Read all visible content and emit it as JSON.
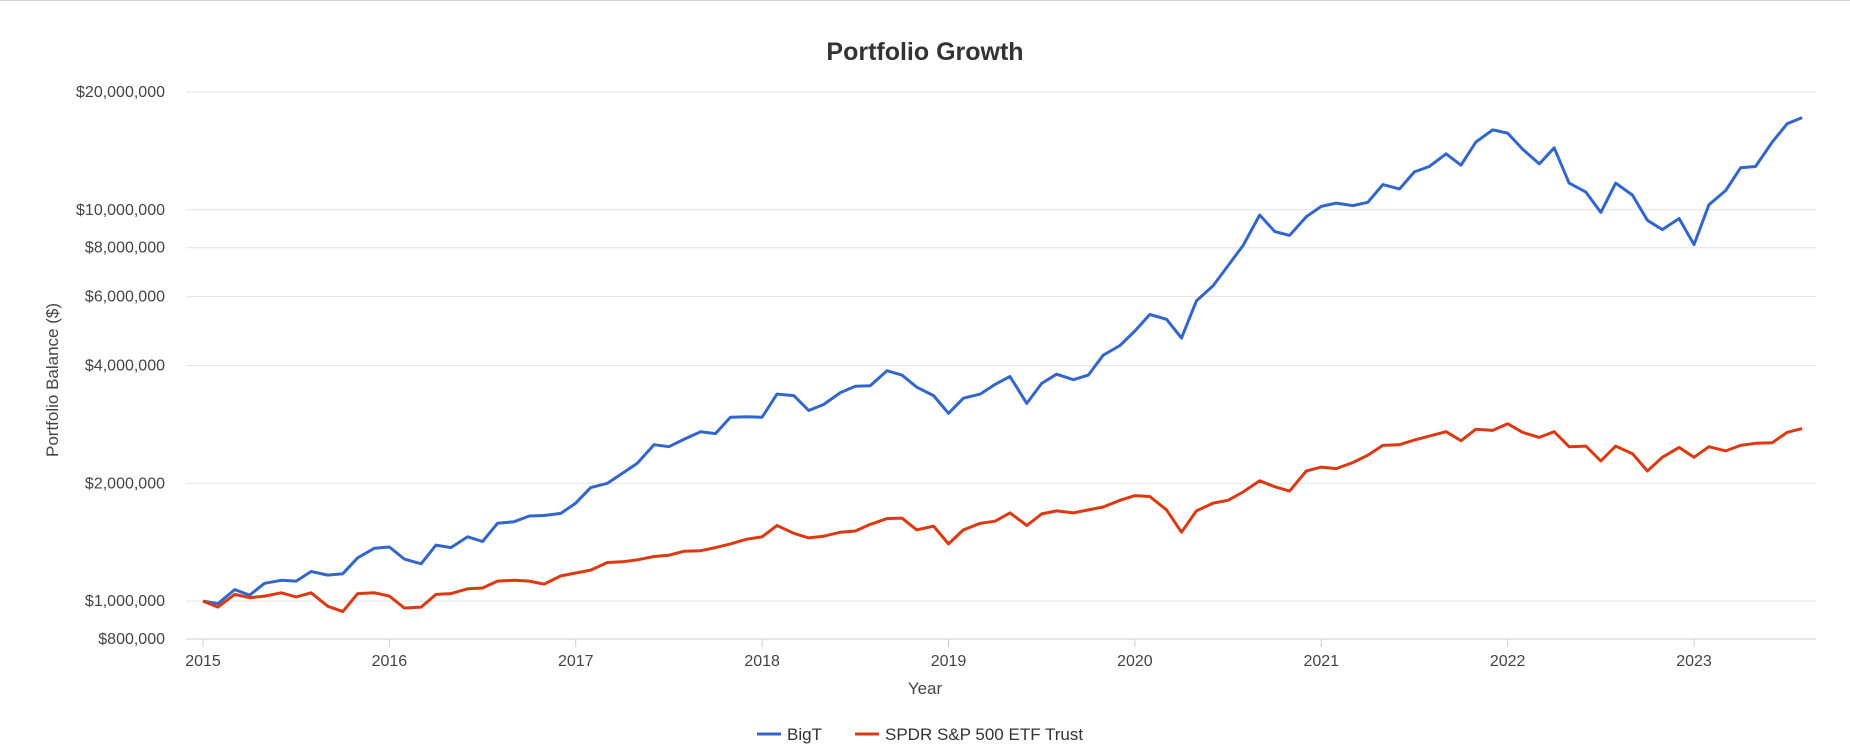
{
  "chart_data": {
    "type": "line",
    "title": "Portfolio Growth",
    "xlabel": "Year",
    "ylabel": "Portfolio Balance ($)",
    "y_scale": "log",
    "ylim": [
      800000,
      20000000
    ],
    "y_ticks": [
      800000,
      1000000,
      2000000,
      4000000,
      6000000,
      8000000,
      10000000,
      20000000
    ],
    "y_tick_labels": [
      "$800,000",
      "$1,000,000",
      "$2,000,000",
      "$4,000,000",
      "$6,000,000",
      "$8,000,000",
      "$10,000,000",
      "$20,000,000"
    ],
    "x_ticks": [
      2015,
      2016,
      2017,
      2018,
      2019,
      2020,
      2021,
      2022,
      2023
    ],
    "x_tick_labels": [
      "2015",
      "2016",
      "2017",
      "2018",
      "2019",
      "2020",
      "2021",
      "2022",
      "2023"
    ],
    "grid": true,
    "legend_position": "bottom-center",
    "x": [
      2015.0,
      2015.08,
      2015.17,
      2015.25,
      2015.33,
      2015.42,
      2015.5,
      2015.58,
      2015.67,
      2015.75,
      2015.83,
      2015.92,
      2016.0,
      2016.08,
      2016.17,
      2016.25,
      2016.33,
      2016.42,
      2016.5,
      2016.58,
      2016.67,
      2016.75,
      2016.83,
      2016.92,
      2017.0,
      2017.08,
      2017.17,
      2017.25,
      2017.33,
      2017.42,
      2017.5,
      2017.58,
      2017.67,
      2017.75,
      2017.83,
      2017.92,
      2018.0,
      2018.08,
      2018.17,
      2018.25,
      2018.33,
      2018.42,
      2018.5,
      2018.58,
      2018.67,
      2018.75,
      2018.83,
      2018.92,
      2019.0,
      2019.08,
      2019.17,
      2019.25,
      2019.33,
      2019.42,
      2019.5,
      2019.58,
      2019.67,
      2019.75,
      2019.83,
      2019.92,
      2020.0,
      2020.08,
      2020.17,
      2020.25,
      2020.33,
      2020.42,
      2020.5,
      2020.58,
      2020.67,
      2020.75,
      2020.83,
      2020.92,
      2021.0,
      2021.08,
      2021.17,
      2021.25,
      2021.33,
      2021.42,
      2021.5,
      2021.58,
      2021.67,
      2021.75,
      2021.83,
      2021.92,
      2022.0,
      2022.08,
      2022.17,
      2022.25,
      2022.33,
      2022.42,
      2022.5,
      2022.58,
      2022.67,
      2022.75,
      2022.83,
      2022.92,
      2023.0,
      2023.08,
      2023.17,
      2023.25,
      2023.33,
      2023.42,
      2023.5,
      2023.58
    ],
    "series": [
      {
        "name": "BigT",
        "color": "#3366cc",
        "values": [
          1000000,
          985000,
          1070000,
          1035000,
          1110000,
          1130000,
          1125000,
          1190000,
          1165000,
          1175000,
          1290000,
          1365000,
          1375000,
          1280000,
          1245000,
          1390000,
          1370000,
          1460000,
          1420000,
          1580000,
          1595000,
          1650000,
          1655000,
          1675000,
          1780000,
          1950000,
          2000000,
          2120000,
          2250000,
          2510000,
          2480000,
          2590000,
          2710000,
          2680000,
          2950000,
          2960000,
          2950000,
          3380000,
          3350000,
          3070000,
          3180000,
          3410000,
          3540000,
          3550000,
          3880000,
          3780000,
          3520000,
          3350000,
          3020000,
          3300000,
          3380000,
          3580000,
          3750000,
          3200000,
          3600000,
          3800000,
          3680000,
          3780000,
          4250000,
          4500000,
          4900000,
          5400000,
          5250000,
          4700000,
          5850000,
          6400000,
          7200000,
          8100000,
          9700000,
          8800000,
          8600000,
          9600000,
          10200000,
          10400000,
          10250000,
          10450000,
          11600000,
          11300000,
          12500000,
          12900000,
          13900000,
          13000000,
          14900000,
          16000000,
          15700000,
          14300000,
          13100000,
          14400000,
          11700000,
          11100000,
          9850000,
          11700000,
          10900000,
          9400000,
          8900000,
          9500000,
          8150000,
          10300000,
          11200000,
          12800000,
          12900000,
          14900000,
          16600000,
          17200000
        ]
      },
      {
        "name": "SPDR S&P 500 ETF Trust",
        "color": "#dc3912",
        "values": [
          1000000,
          965000,
          1040000,
          1020000,
          1030000,
          1050000,
          1025000,
          1050000,
          970000,
          940000,
          1045000,
          1050000,
          1030000,
          960000,
          965000,
          1040000,
          1045000,
          1075000,
          1080000,
          1125000,
          1130000,
          1125000,
          1105000,
          1160000,
          1180000,
          1200000,
          1255000,
          1260000,
          1275000,
          1300000,
          1310000,
          1340000,
          1345000,
          1370000,
          1400000,
          1440000,
          1460000,
          1560000,
          1490000,
          1450000,
          1465000,
          1500000,
          1510000,
          1570000,
          1625000,
          1630000,
          1520000,
          1555000,
          1400000,
          1520000,
          1580000,
          1600000,
          1680000,
          1560000,
          1670000,
          1700000,
          1680000,
          1710000,
          1740000,
          1810000,
          1860000,
          1850000,
          1710000,
          1500000,
          1700000,
          1780000,
          1810000,
          1900000,
          2030000,
          1960000,
          1910000,
          2150000,
          2200000,
          2180000,
          2260000,
          2360000,
          2500000,
          2510000,
          2580000,
          2640000,
          2710000,
          2570000,
          2750000,
          2730000,
          2840000,
          2700000,
          2620000,
          2710000,
          2480000,
          2490000,
          2280000,
          2490000,
          2380000,
          2150000,
          2330000,
          2470000,
          2330000,
          2480000,
          2420000,
          2500000,
          2530000,
          2540000,
          2700000,
          2760000
        ]
      }
    ]
  }
}
